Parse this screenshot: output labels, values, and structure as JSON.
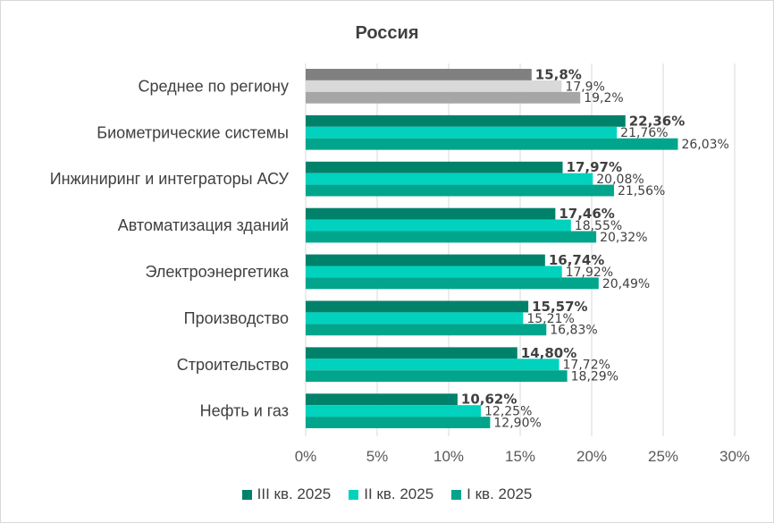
{
  "colors": {
    "q3": "#00826a",
    "q2": "#00d2be",
    "q1": "#00a58c",
    "avg_q3": "#808080",
    "avg_q2": "#d9d9d9",
    "avg_q1": "#a6a6a6",
    "grid": "#d9d9d9"
  },
  "chart_data": {
    "type": "bar",
    "orientation": "horizontal",
    "title": "Россия",
    "categories": [
      "Среднее по региону",
      "Биометрические системы",
      "Инжиниринг и интеграторы АСУ",
      "Автоматизация зданий",
      "Электроэнергетика",
      "Производство",
      "Строительство",
      "Нефть и газ"
    ],
    "series": [
      {
        "name": "III кв. 2025",
        "values": [
          15.8,
          22.36,
          17.97,
          17.46,
          16.74,
          15.57,
          14.8,
          10.62
        ],
        "labels": [
          "15,8%",
          "22,36%",
          "17,97%",
          "17,46%",
          "16,74%",
          "15,57%",
          "14,80%",
          "10,62%"
        ]
      },
      {
        "name": "II кв. 2025",
        "values": [
          17.9,
          21.76,
          20.08,
          18.55,
          17.92,
          15.21,
          17.72,
          12.25
        ],
        "labels": [
          "17,9%",
          "21,76%",
          "20,08%",
          "18,55%",
          "17,92%",
          "15,21%",
          "17,72%",
          "12,25%"
        ]
      },
      {
        "name": "I кв. 2025",
        "values": [
          19.2,
          26.03,
          21.56,
          20.32,
          20.49,
          16.83,
          18.29,
          12.9
        ],
        "labels": [
          "19,2%",
          "26,03%",
          "21,56%",
          "20,32%",
          "20,49%",
          "16,83%",
          "18,29%",
          "12,90%"
        ]
      }
    ],
    "xlim": [
      0,
      30
    ],
    "xticks": [
      "0%",
      "5%",
      "10%",
      "15%",
      "20%",
      "25%",
      "30%"
    ],
    "grid": "vertical",
    "legend_position": "bottom"
  }
}
